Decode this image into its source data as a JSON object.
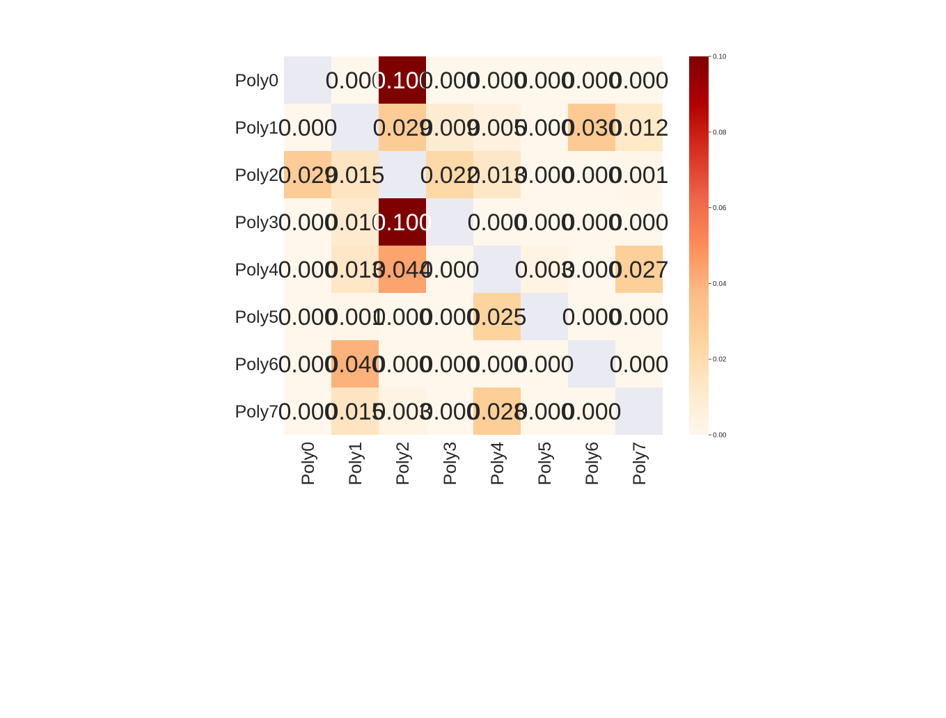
{
  "chart_data": {
    "type": "heatmap",
    "rows": [
      "Poly0",
      "Poly1",
      "Poly2",
      "Poly3",
      "Poly4",
      "Poly5",
      "Poly6",
      "Poly7"
    ],
    "columns": [
      "Poly0",
      "Poly1",
      "Poly2",
      "Poly3",
      "Poly4",
      "Poly5",
      "Poly6",
      "Poly7"
    ],
    "values": [
      [
        null,
        0.0,
        0.1,
        0.0,
        0.0,
        0.0,
        0.0,
        0.0
      ],
      [
        0.0,
        null,
        0.029,
        0.009,
        0.005,
        0.0,
        0.03,
        0.012
      ],
      [
        0.029,
        0.015,
        null,
        0.022,
        0.013,
        0.0,
        0.0,
        0.001
      ],
      [
        0.0,
        0.01,
        0.1,
        null,
        0.0,
        0.0,
        0.0,
        0.0
      ],
      [
        0.0,
        0.013,
        0.044,
        0.0,
        null,
        0.003,
        0.0,
        0.027
      ],
      [
        0.0,
        0.001,
        0.0,
        0.0,
        0.025,
        null,
        0.0,
        0.0
      ],
      [
        0.0,
        0.04,
        0.0,
        0.0,
        0.0,
        0.0,
        null,
        0.0
      ],
      [
        0.0,
        0.015,
        0.003,
        0.0,
        0.028,
        0.0,
        0.0,
        null
      ]
    ],
    "value_format": "0.000",
    "masked_cell_color": "#eaeaf2",
    "colormap": "OrRd",
    "vmin": 0.0,
    "vmax": 0.1,
    "colorbar_ticks": [
      "0.00",
      "0.02",
      "0.04",
      "0.06",
      "0.08",
      "0.10"
    ],
    "colorbar_tick_values": [
      0.0,
      0.02,
      0.04,
      0.06,
      0.08,
      0.1
    ],
    "x_tick_rotation": "vertical",
    "title": "",
    "xlabel": "",
    "ylabel": ""
  }
}
